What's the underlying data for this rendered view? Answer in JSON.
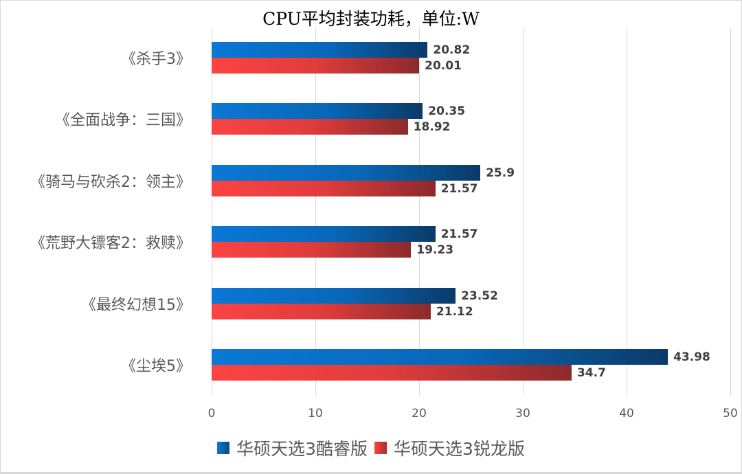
{
  "chart_data": {
    "type": "bar",
    "orientation": "horizontal",
    "title": "CPU平均封装功耗，单位:W",
    "xlabel": "",
    "ylabel": "",
    "xlim": [
      0,
      50
    ],
    "x_ticks": [
      "0",
      "10",
      "20",
      "30",
      "40",
      "50"
    ],
    "grid": true,
    "legend_position": "bottom",
    "categories": [
      "《杀手3》",
      "《全面战争：三国》",
      "《骑马与砍杀2：领主》",
      "《荒野大镖客2：救赎》",
      "《最终幻想15》",
      "《尘埃5》"
    ],
    "series": [
      {
        "name": "华硕天选3酷睿版",
        "color": "#0a78d6",
        "values": [
          20.82,
          20.35,
          25.9,
          21.57,
          23.52,
          43.98
        ]
      },
      {
        "name": "华硕天选3锐龙版",
        "color": "#fb4343",
        "values": [
          20.01,
          18.92,
          21.57,
          19.23,
          21.12,
          34.7
        ]
      }
    ],
    "value_labels": {
      "s1": [
        "20.82",
        "20.35",
        "25.9",
        "21.57",
        "23.52",
        "43.98"
      ],
      "s2": [
        "20.01",
        "18.92",
        "21.57",
        "19.23",
        "21.12",
        "34.7"
      ]
    }
  }
}
